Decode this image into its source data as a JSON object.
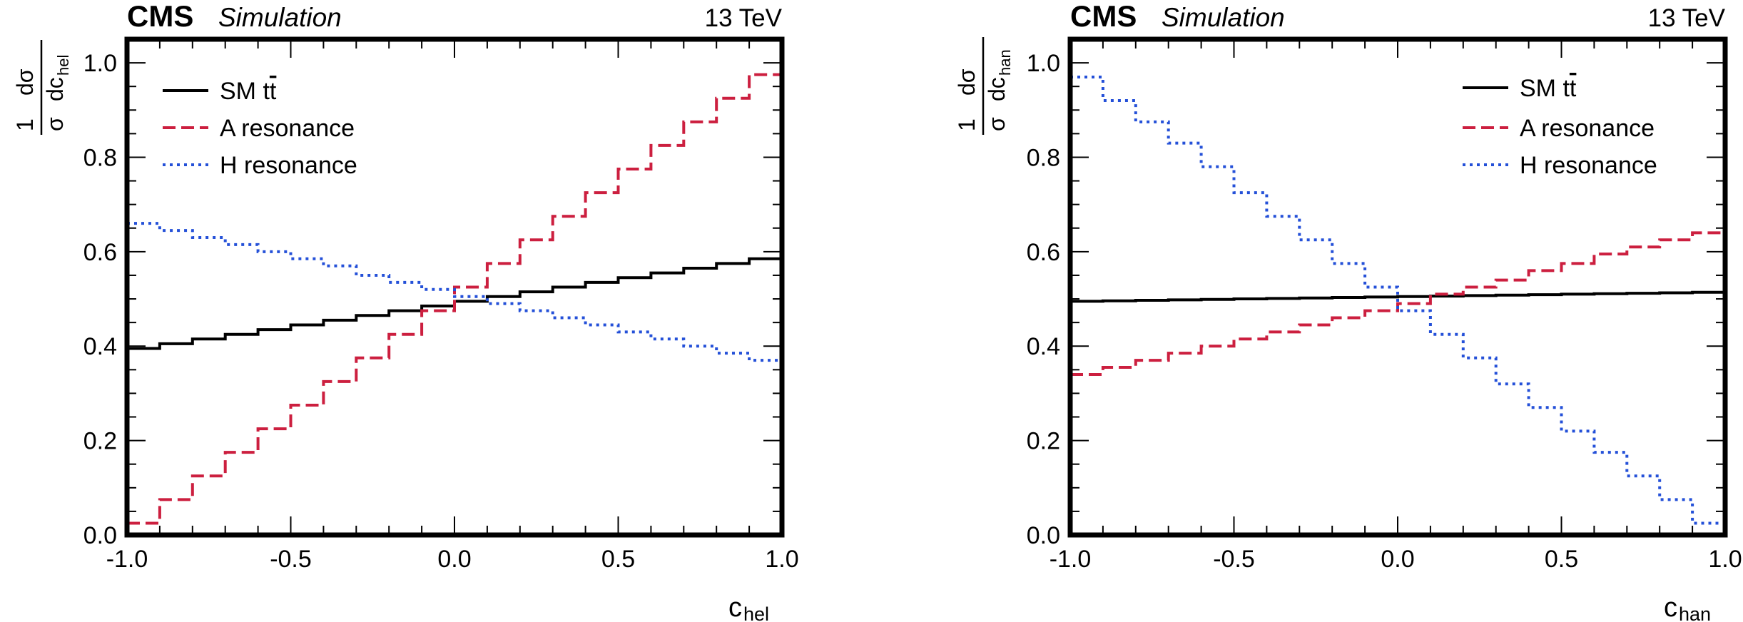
{
  "chart_data": [
    {
      "type": "line",
      "drawstyle": "steps",
      "header_left_bold": "CMS",
      "header_left_italic": "Simulation",
      "header_right": "13 TeV",
      "ylabel": "1/σ dσ/dc_hel",
      "ylabel_parts": {
        "num_one": "1",
        "num_dsigma": "dσ",
        "den_sigma": "σ",
        "den_dc": "dc",
        "den_sub": "hel"
      },
      "xlabel": "c_hel",
      "xlabel_parts": {
        "main": "c",
        "sub": "hel"
      },
      "xlim": [
        -1.0,
        1.0
      ],
      "ylim": [
        0.0,
        1.05
      ],
      "xticks": [
        -1.0,
        -0.5,
        0.0,
        0.5,
        1.0
      ],
      "xtick_labels": [
        "-1.0",
        "-0.5",
        "0.0",
        "0.5",
        "1.0"
      ],
      "yticks": [
        0.0,
        0.2,
        0.4,
        0.6,
        0.8,
        1.0
      ],
      "ytick_labels": [
        "0.0",
        "0.2",
        "0.4",
        "0.6",
        "0.8",
        "1.0"
      ],
      "bin_edges": [
        -1.0,
        -0.9,
        -0.8,
        -0.7,
        -0.6,
        -0.5,
        -0.4,
        -0.3,
        -0.2,
        -0.1,
        0.0,
        0.1,
        0.2,
        0.3,
        0.4,
        0.5,
        0.6,
        0.7,
        0.8,
        0.9,
        1.0
      ],
      "legend_position": "top-left",
      "series": [
        {
          "name": "SM tt̄",
          "name_parts": [
            "SM t",
            "t"
          ],
          "color": "#000000",
          "style": "solid",
          "values": [
            0.395,
            0.405,
            0.415,
            0.425,
            0.435,
            0.445,
            0.455,
            0.465,
            0.475,
            0.485,
            0.495,
            0.505,
            0.515,
            0.525,
            0.535,
            0.545,
            0.555,
            0.565,
            0.575,
            0.585,
            0.605
          ]
        },
        {
          "name": "A resonance",
          "color": "#cc1f3f",
          "style": "dashed",
          "values": [
            0.025,
            0.075,
            0.125,
            0.175,
            0.225,
            0.275,
            0.325,
            0.375,
            0.425,
            0.475,
            0.525,
            0.575,
            0.625,
            0.675,
            0.725,
            0.775,
            0.825,
            0.875,
            0.925,
            0.975,
            0.98
          ]
        },
        {
          "name": "H resonance",
          "color": "#2450d8",
          "style": "dotted",
          "values": [
            0.66,
            0.645,
            0.63,
            0.615,
            0.6,
            0.585,
            0.57,
            0.55,
            0.535,
            0.52,
            0.505,
            0.49,
            0.475,
            0.46,
            0.445,
            0.43,
            0.415,
            0.4,
            0.385,
            0.37,
            0.345
          ]
        }
      ]
    },
    {
      "type": "line",
      "drawstyle": "steps",
      "header_left_bold": "CMS",
      "header_left_italic": "Simulation",
      "header_right": "13 TeV",
      "ylabel": "1/σ dσ/dc_han",
      "ylabel_parts": {
        "num_one": "1",
        "num_dsigma": "dσ",
        "den_sigma": "σ",
        "den_dc": "dc",
        "den_sub": "han"
      },
      "xlabel": "c_han",
      "xlabel_parts": {
        "main": "c",
        "sub": "han"
      },
      "xlim": [
        -1.0,
        1.0
      ],
      "ylim": [
        0.0,
        1.05
      ],
      "xticks": [
        -1.0,
        -0.5,
        0.0,
        0.5,
        1.0
      ],
      "xtick_labels": [
        "-1.0",
        "-0.5",
        "0.0",
        "0.5",
        "1.0"
      ],
      "yticks": [
        0.0,
        0.2,
        0.4,
        0.6,
        0.8,
        1.0
      ],
      "ytick_labels": [
        "0.0",
        "0.2",
        "0.4",
        "0.6",
        "0.8",
        "1.0"
      ],
      "bin_edges": [
        -1.0,
        -0.9,
        -0.8,
        -0.7,
        -0.6,
        -0.5,
        -0.4,
        -0.3,
        -0.2,
        -0.1,
        0.0,
        0.1,
        0.2,
        0.3,
        0.4,
        0.5,
        0.6,
        0.7,
        0.8,
        0.9,
        1.0
      ],
      "legend_position": "top-right",
      "series": [
        {
          "name": "SM tt̄",
          "name_parts": [
            "SM t",
            "t"
          ],
          "color": "#000000",
          "style": "solid",
          "values": [
            0.495,
            0.496,
            0.497,
            0.498,
            0.499,
            0.5,
            0.501,
            0.502,
            0.503,
            0.504,
            0.505,
            0.506,
            0.507,
            0.508,
            0.509,
            0.51,
            0.511,
            0.512,
            0.513,
            0.514,
            0.515
          ]
        },
        {
          "name": "A resonance",
          "color": "#cc1f3f",
          "style": "dashed",
          "values": [
            0.34,
            0.355,
            0.37,
            0.385,
            0.4,
            0.415,
            0.43,
            0.445,
            0.46,
            0.475,
            0.49,
            0.51,
            0.525,
            0.54,
            0.56,
            0.575,
            0.595,
            0.61,
            0.625,
            0.64,
            0.66
          ]
        },
        {
          "name": "H resonance",
          "color": "#2450d8",
          "style": "dotted",
          "values": [
            0.97,
            0.92,
            0.875,
            0.83,
            0.78,
            0.725,
            0.675,
            0.625,
            0.575,
            0.525,
            0.475,
            0.425,
            0.375,
            0.32,
            0.27,
            0.22,
            0.175,
            0.125,
            0.075,
            0.025,
            0.025
          ]
        }
      ]
    }
  ]
}
